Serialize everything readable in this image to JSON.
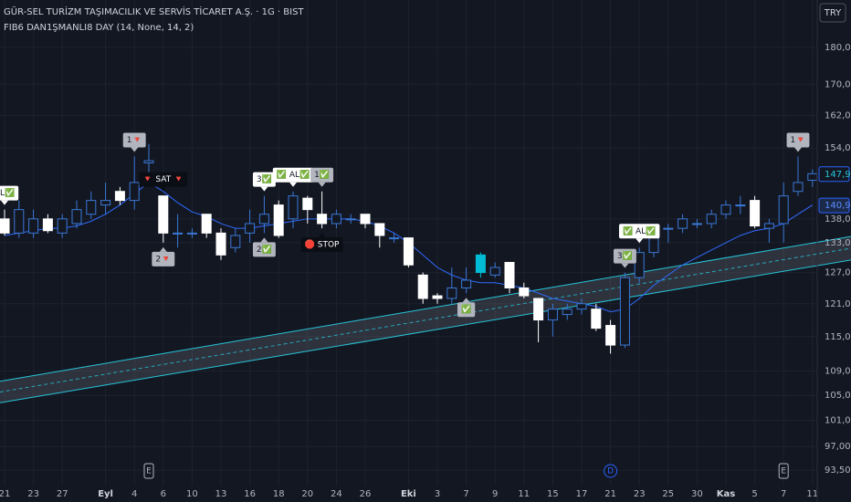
{
  "chart_data": {
    "type": "candlestick",
    "title": "GÜR-SEL TURİZM TAŞIMACILIK VE SERVİS TİCARET A.Ş. · 1G · BIST",
    "subtitle": "FIB6 DAN1ŞMANLI8 DAY (14, None, 14, 2)",
    "currency": "TRY",
    "log_scale": true,
    "grid": true,
    "ylim": [
      91.3,
      193.7
    ],
    "yticks": [
      {
        "value": 180,
        "label": "180,0"
      },
      {
        "value": 170,
        "label": "170,0"
      },
      {
        "value": 162,
        "label": "162,0"
      },
      {
        "value": 154,
        "label": "154,0"
      },
      {
        "value": 138,
        "label": "138,0"
      },
      {
        "value": 133,
        "label": "133,0"
      },
      {
        "value": 127,
        "label": "127,0"
      },
      {
        "value": 121,
        "label": "121,0"
      },
      {
        "value": 115,
        "label": "115,0"
      },
      {
        "value": 109,
        "label": "109,0"
      },
      {
        "value": 105,
        "label": "105,0"
      },
      {
        "value": 101,
        "label": "101,0"
      },
      {
        "value": 97,
        "label": "97,00"
      },
      {
        "value": 93.5,
        "label": "93,50"
      }
    ],
    "price_tags": [
      {
        "value": 147.9,
        "label": "147,9"
      },
      {
        "value": 140.9,
        "label": "140,9"
      }
    ],
    "categories": [
      "21",
      null,
      "23",
      null,
      "27",
      null,
      null,
      "Eyl",
      null,
      "4",
      null,
      "6",
      null,
      "10",
      null,
      "13",
      null,
      "16",
      null,
      "18",
      null,
      "20",
      null,
      "24",
      null,
      "26",
      null,
      null,
      "Eki",
      null,
      "3",
      null,
      "7",
      null,
      "9",
      null,
      "11",
      null,
      "15",
      null,
      "17",
      null,
      "21",
      null,
      "23",
      null,
      "25",
      null,
      "30",
      null,
      "Kas",
      null,
      "5",
      null,
      "7",
      null,
      "11"
    ],
    "open": [
      138,
      135,
      135,
      138,
      135,
      137,
      139,
      141,
      144,
      142,
      150.5,
      143,
      135,
      135,
      139,
      135,
      132,
      135,
      137,
      141,
      138,
      142.5,
      139,
      137,
      138,
      139,
      137,
      134,
      134,
      126.5,
      122.5,
      122,
      124,
      127,
      126.5,
      129,
      124,
      122,
      118,
      119,
      120,
      120,
      117,
      113.5,
      126,
      131,
      136,
      136,
      137,
      137,
      139,
      141,
      142,
      136,
      137,
      144,
      146.5
    ],
    "high": [
      140,
      142,
      140,
      139,
      139,
      142,
      144,
      146,
      145,
      152,
      155,
      143,
      139,
      136,
      139,
      136,
      136,
      140,
      143,
      142,
      144,
      143,
      144,
      140,
      139,
      139,
      137,
      135,
      134,
      127,
      123,
      128,
      128,
      131,
      129,
      129,
      125,
      122,
      121,
      121,
      122,
      121,
      118,
      127,
      132,
      137,
      137,
      139,
      138,
      140,
      142,
      143,
      143,
      138,
      146,
      152,
      149
    ],
    "low": [
      134.5,
      134,
      134,
      135,
      134,
      136,
      138,
      139,
      141,
      140,
      148,
      133,
      132,
      134,
      134,
      129.5,
      131,
      133,
      135,
      134,
      136,
      137,
      136,
      136,
      137,
      136,
      132,
      133,
      128,
      121,
      121,
      121,
      123,
      126,
      126,
      123,
      122,
      114,
      115,
      118,
      119,
      116,
      112,
      113,
      125,
      130,
      133,
      135,
      136,
      136,
      138,
      139,
      136,
      133,
      133,
      143,
      145
    ],
    "close": [
      135,
      140,
      138,
      135.5,
      138,
      140,
      142,
      142,
      142,
      146,
      151,
      135,
      135,
      135,
      135,
      130.5,
      134.5,
      137,
      139,
      134.5,
      143,
      140,
      137,
      139,
      138,
      137,
      134.5,
      134,
      128.5,
      122,
      122,
      124,
      125.5,
      130.5,
      128,
      124,
      122.5,
      118,
      120,
      120,
      121,
      116.5,
      113.5,
      126,
      131,
      136,
      136,
      138,
      137,
      139,
      141,
      141,
      136.5,
      137,
      143,
      146,
      148
    ],
    "colors": {
      "up": "#3a78d6",
      "down": "#ffffff",
      "highlight": "#00bcd4"
    },
    "highlight_index": 33,
    "ma": {
      "color": "#2f6bff",
      "values": [
        134.5,
        135,
        135.5,
        136,
        136,
        136.5,
        137.5,
        139,
        141,
        143.5,
        146,
        144,
        141.5,
        139.5,
        138.5,
        137,
        136,
        136,
        136.5,
        137,
        137.5,
        138,
        138,
        138,
        138,
        137.5,
        136.5,
        135,
        133,
        130.5,
        128,
        126.5,
        125.5,
        125,
        125,
        124.5,
        124,
        123,
        122,
        121.5,
        121,
        120.5,
        119.5,
        120,
        122,
        124.5,
        126.5,
        128.5,
        130,
        131.5,
        133,
        134.5,
        135.5,
        136,
        137,
        139,
        141
      ]
    },
    "channel": {
      "color": "#26c6da",
      "x": [
        -0.32,
        58.7
      ],
      "upper": [
        107.3,
        134.3
      ],
      "lower": [
        103.8,
        129.5
      ]
    },
    "annotations": [
      {
        "at": 0,
        "text": "AL✅",
        "side": "above",
        "style": "light"
      },
      {
        "at": 9,
        "text": "1🔻",
        "side": "above",
        "style": "gray"
      },
      {
        "at": 11,
        "text": "🔻 SAT 🔻",
        "side": "above",
        "style": "dark"
      },
      {
        "at": 11,
        "text": "2🔻",
        "side": "below",
        "style": "gray"
      },
      {
        "at": 18,
        "text": "3✅",
        "side": "above",
        "style": "light"
      },
      {
        "at": 20,
        "text": "✅ AL✅",
        "side": "above",
        "style": "light"
      },
      {
        "at": 22,
        "text": "1✅",
        "side": "above",
        "style": "gray"
      },
      {
        "at": 18,
        "text": "2✅",
        "side": "below",
        "style": "gray"
      },
      {
        "at": 22,
        "text": "🛑 STOP",
        "side": "below",
        "style": "dark"
      },
      {
        "at": 32,
        "text": "✅",
        "side": "below",
        "style": "gray"
      },
      {
        "at": 43,
        "text": "3✅",
        "side": "above",
        "style": "gray"
      },
      {
        "at": 44,
        "text": "✅ AL✅",
        "side": "above",
        "style": "light"
      },
      {
        "at": 55,
        "text": "1🔻",
        "side": "above",
        "style": "gray"
      }
    ],
    "events": [
      {
        "at": 10,
        "label": "E"
      },
      {
        "at": 42,
        "label": "D"
      },
      {
        "at": 54,
        "label": "E"
      }
    ]
  }
}
